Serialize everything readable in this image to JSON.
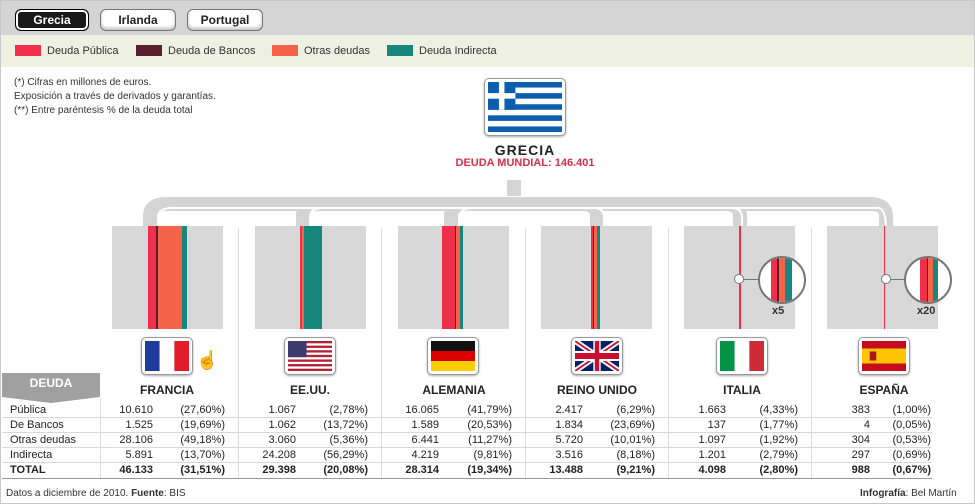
{
  "tabs": [
    {
      "label": "Grecia",
      "active": true
    },
    {
      "label": "Irlanda",
      "active": false
    },
    {
      "label": "Portugal",
      "active": false
    }
  ],
  "legend": [
    {
      "label": "Deuda Pública",
      "color": "#f0304b"
    },
    {
      "label": "Deuda de Bancos",
      "color": "#5a1f2e"
    },
    {
      "label": "Otras deudas",
      "color": "#f5644a"
    },
    {
      "label": "Deuda Indirecta",
      "color": "#17877e"
    }
  ],
  "notes": [
    "(*)  Cifras en millones de euros.",
    "Exposición a través de derivados y garantías.",
    "(**) Entre paréntesis % de la deuda total"
  ],
  "main": {
    "country": "GRECIA",
    "subtitle": "DEUDA MUNDIAL: 146.401"
  },
  "table_header": "DEUDA",
  "row_labels": [
    "Pública",
    "De Bancos",
    "Otras deudas",
    "Indirecta",
    "TOTAL"
  ],
  "countries": [
    {
      "name": "FRANCIA",
      "flag": "france",
      "rows": [
        [
          "10.610",
          "(27,60%)"
        ],
        [
          "1.525",
          "(19,69%)"
        ],
        [
          "28.106",
          "(49,18%)"
        ],
        [
          "5.891",
          "(13,70%)"
        ],
        [
          "46.133",
          "(31,51%)"
        ]
      ],
      "multiplier": ""
    },
    {
      "name": "EE.UU.",
      "flag": "usa",
      "rows": [
        [
          "1.067",
          "(2,78%)"
        ],
        [
          "1.062",
          "(13,72%)"
        ],
        [
          "3.060",
          "(5,36%)"
        ],
        [
          "24.208",
          "(56,29%)"
        ],
        [
          "29.398",
          "(20,08%)"
        ]
      ],
      "multiplier": ""
    },
    {
      "name": "ALEMANIA",
      "flag": "germany",
      "rows": [
        [
          "16.065",
          "(41,79%)"
        ],
        [
          "1.589",
          "(20,53%)"
        ],
        [
          "6.441",
          "(11,27%)"
        ],
        [
          "4.219",
          "(9,81%)"
        ],
        [
          "28.314",
          "(19,34%)"
        ]
      ],
      "multiplier": ""
    },
    {
      "name": "REINO UNIDO",
      "flag": "uk",
      "rows": [
        [
          "2.417",
          "(6,29%)"
        ],
        [
          "1.834",
          "(23,69%)"
        ],
        [
          "5.720",
          "(10,01%)"
        ],
        [
          "3.516",
          "(8,18%)"
        ],
        [
          "13.488",
          "(9,21%)"
        ]
      ],
      "multiplier": ""
    },
    {
      "name": "ITALIA",
      "flag": "italy",
      "rows": [
        [
          "1.663",
          "(4,33%)"
        ],
        [
          "137",
          "(1,77%)"
        ],
        [
          "1.097",
          "(1,92%)"
        ],
        [
          "1.201",
          "(2,79%)"
        ],
        [
          "4.098",
          "(2,80%)"
        ]
      ],
      "multiplier": "x5"
    },
    {
      "name": "ESPAÑA",
      "flag": "spain",
      "rows": [
        [
          "383",
          "(1,00%)"
        ],
        [
          "4",
          "(0,05%)"
        ],
        [
          "304",
          "(0,53%)"
        ],
        [
          "297",
          "(0,69%)"
        ],
        [
          "988",
          "(0,67%)"
        ]
      ],
      "multiplier": "x20"
    }
  ],
  "footer": {
    "source_prefix": "Datos a diciembre de 2010.",
    "source_label": "Fuente",
    "source_value": ": BIS",
    "credit_label": "Infografía",
    "credit_value": ": Bel Martín"
  }
}
